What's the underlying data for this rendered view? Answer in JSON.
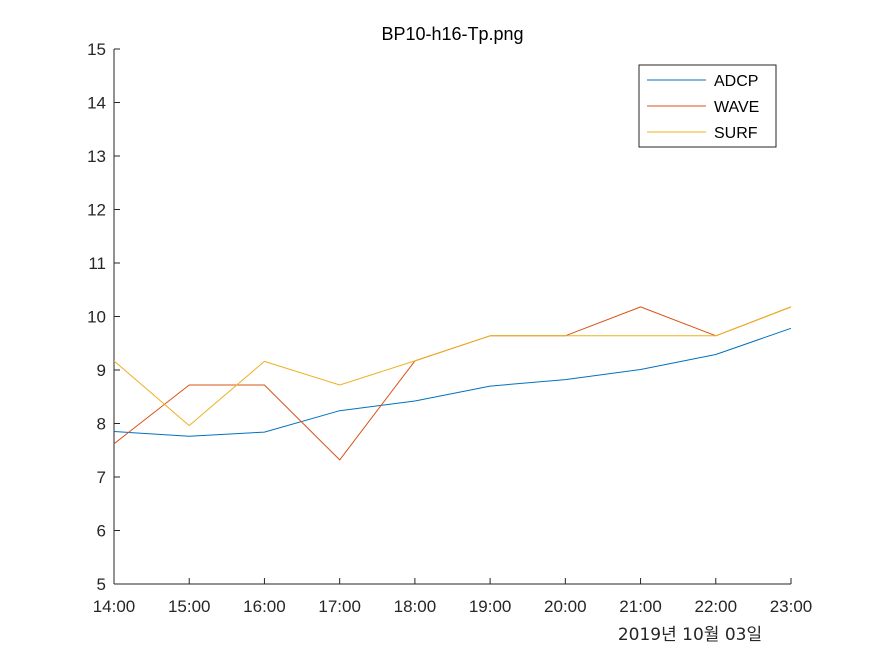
{
  "chart_data": {
    "type": "line",
    "title": "BP10-h16-Tp.png",
    "x": [
      "14:00",
      "15:00",
      "16:00",
      "17:00",
      "18:00",
      "19:00",
      "20:00",
      "21:00",
      "22:00",
      "23:00"
    ],
    "date_label": "2019년 10월 03일",
    "ylim": [
      5,
      15
    ],
    "yticks": [
      5,
      6,
      7,
      8,
      9,
      10,
      11,
      12,
      13,
      14,
      15
    ],
    "grid": false,
    "legend_position": "top-right",
    "series": [
      {
        "name": "ADCP",
        "color": "#0072BD",
        "values": [
          7.85,
          7.76,
          7.84,
          8.24,
          8.42,
          8.7,
          8.82,
          9.01,
          9.29,
          9.78
        ]
      },
      {
        "name": "WAVE",
        "color": "#D95319",
        "values": [
          7.62,
          8.72,
          8.72,
          7.32,
          9.17,
          9.64,
          9.64,
          10.18,
          9.64,
          10.18
        ]
      },
      {
        "name": "SURF",
        "color": "#EDB120",
        "values": [
          9.17,
          7.96,
          9.16,
          8.72,
          9.17,
          9.64,
          9.64,
          9.64,
          9.64,
          10.18
        ]
      }
    ]
  }
}
